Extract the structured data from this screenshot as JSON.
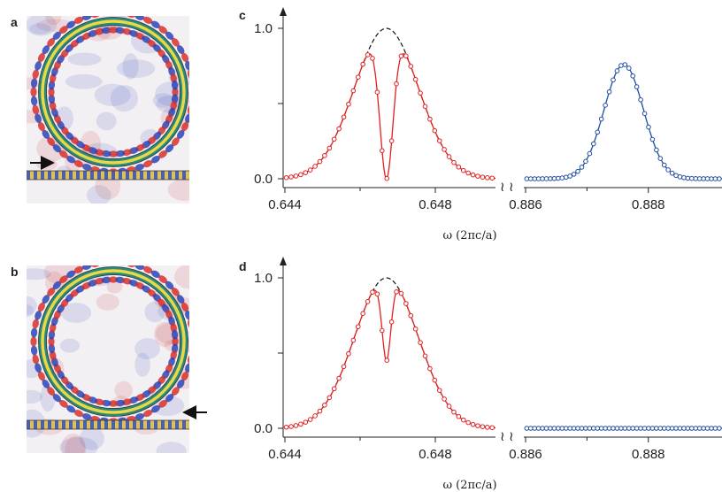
{
  "panel_labels": {
    "a": "a",
    "b": "b",
    "c": "c",
    "d": "d"
  },
  "axis_label": "ω (2πc/a)",
  "colors": {
    "red": "#e02020",
    "blue": "#1f4e9e",
    "envelope": "#111111",
    "ring_yellow": "#e8d84a",
    "ring_teal": "#2a8a7a"
  },
  "field_maps": [
    {
      "panel": "a",
      "direction": "right",
      "arrow_icon": "right-arrow-icon"
    },
    {
      "panel": "b",
      "direction": "left",
      "arrow_icon": "left-arrow-icon"
    }
  ],
  "chart_data": [
    {
      "panel": "c",
      "type": "line",
      "xlabel": "ω (2πc/a)",
      "ylim": [
        0,
        1.0
      ],
      "yticks": [
        "0.0",
        "1.0"
      ],
      "broken_x_axis": true,
      "segments": [
        {
          "xlim": [
            0.644,
            0.6496
          ],
          "xticks": [
            "0.644",
            "0.648"
          ],
          "color": "#e02020",
          "envelope": {
            "center": 0.6467,
            "width": 0.00085,
            "peak": 1.0,
            "style": "dashed"
          },
          "fit": {
            "dip_center": 0.6467,
            "dip_depth": 1.0,
            "dip_width": 0.00018
          },
          "markers": "circles"
        },
        {
          "xlim": [
            0.886,
            0.8892
          ],
          "xticks": [
            "0.886",
            "0.888"
          ],
          "color": "#1f4e9e",
          "fit": {
            "center": 0.8876,
            "width": 0.00032,
            "peak": 0.76
          },
          "markers": "circles"
        }
      ]
    },
    {
      "panel": "d",
      "type": "line",
      "xlabel": "ω (2πc/a)",
      "ylim": [
        0,
        1.0
      ],
      "yticks": [
        "0.0",
        "1.0"
      ],
      "broken_x_axis": true,
      "segments": [
        {
          "xlim": [
            0.644,
            0.6496
          ],
          "xticks": [
            "0.644",
            "0.648"
          ],
          "color": "#e02020",
          "envelope": {
            "center": 0.6467,
            "width": 0.00085,
            "peak": 1.0,
            "style": "dashed"
          },
          "fit": {
            "dip_center": 0.6467,
            "dip_depth": 0.55,
            "dip_width": 0.00012
          },
          "markers": "circles"
        },
        {
          "xlim": [
            0.886,
            0.8892
          ],
          "xticks": [
            "0.886",
            "0.888"
          ],
          "color": "#1f4e9e",
          "fit": {
            "center": 0.8876,
            "width": 0.00032,
            "peak": 0.0
          },
          "markers": "circles"
        }
      ]
    }
  ]
}
